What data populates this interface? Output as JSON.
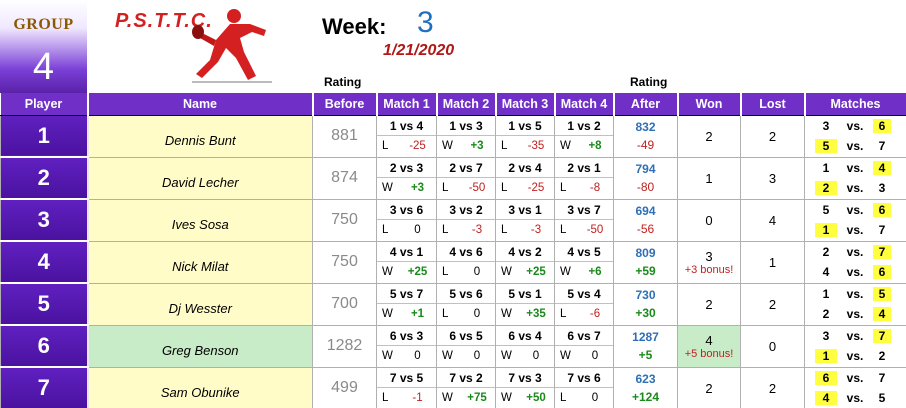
{
  "group": {
    "label": "GROUP",
    "number": "4"
  },
  "logo": {
    "text": "P.S.T.T.C."
  },
  "week": {
    "label": "Week:",
    "number": "3",
    "date": "1/21/2020"
  },
  "rating_headers": {
    "before": "Rating",
    "after": "Rating"
  },
  "columns": [
    "Player",
    "Name",
    "Before",
    "Match 1",
    "Match 2",
    "Match 3",
    "Match 4",
    "After",
    "Won",
    "Lost",
    "Matches"
  ],
  "players": [
    {
      "player": "1",
      "name": "Dennis Bunt",
      "before": "881",
      "matches": [
        {
          "vs": "1 vs 4",
          "res": "L",
          "pts": "-25"
        },
        {
          "vs": "1 vs 3",
          "res": "W",
          "pts": "+3"
        },
        {
          "vs": "1 vs 5",
          "res": "L",
          "pts": "-35"
        },
        {
          "vs": "1 vs 2",
          "res": "W",
          "pts": "+8"
        }
      ],
      "after": "832",
      "change": "-49",
      "won": "2",
      "bonus": "",
      "lost": "2",
      "sched": [
        {
          "a": "3",
          "vs": "vs.",
          "b": "6",
          "ya": false,
          "yb": true
        },
        {
          "a": "5",
          "vs": "vs.",
          "b": "7",
          "ya": true,
          "yb": false
        }
      ]
    },
    {
      "player": "2",
      "name": "David Lecher",
      "before": "874",
      "matches": [
        {
          "vs": "2 vs 3",
          "res": "W",
          "pts": "+3"
        },
        {
          "vs": "2 vs 7",
          "res": "L",
          "pts": "-50"
        },
        {
          "vs": "2 vs 4",
          "res": "L",
          "pts": "-25"
        },
        {
          "vs": "2 vs 1",
          "res": "L",
          "pts": "-8"
        }
      ],
      "after": "794",
      "change": "-80",
      "won": "1",
      "bonus": "",
      "lost": "3",
      "sched": [
        {
          "a": "1",
          "vs": "vs.",
          "b": "4",
          "ya": false,
          "yb": true
        },
        {
          "a": "2",
          "vs": "vs.",
          "b": "3",
          "ya": true,
          "yb": false
        }
      ]
    },
    {
      "player": "3",
      "name": "Ives Sosa",
      "before": "750",
      "matches": [
        {
          "vs": "3 vs 6",
          "res": "L",
          "pts": "0"
        },
        {
          "vs": "3 vs 2",
          "res": "L",
          "pts": "-3"
        },
        {
          "vs": "3 vs 1",
          "res": "L",
          "pts": "-3"
        },
        {
          "vs": "3 vs 7",
          "res": "L",
          "pts": "-50"
        }
      ],
      "after": "694",
      "change": "-56",
      "won": "0",
      "bonus": "",
      "lost": "4",
      "sched": [
        {
          "a": "5",
          "vs": "vs.",
          "b": "6",
          "ya": false,
          "yb": true
        },
        {
          "a": "1",
          "vs": "vs.",
          "b": "7",
          "ya": true,
          "yb": false
        }
      ]
    },
    {
      "player": "4",
      "name": "Nick Milat",
      "before": "750",
      "matches": [
        {
          "vs": "4 vs 1",
          "res": "W",
          "pts": "+25"
        },
        {
          "vs": "4 vs 6",
          "res": "L",
          "pts": "0"
        },
        {
          "vs": "4 vs 2",
          "res": "W",
          "pts": "+25"
        },
        {
          "vs": "4 vs 5",
          "res": "W",
          "pts": "+6"
        }
      ],
      "after": "809",
      "change": "+59",
      "won": "3",
      "bonus": "+3 bonus!",
      "lost": "1",
      "sched": [
        {
          "a": "2",
          "vs": "vs.",
          "b": "7",
          "ya": false,
          "yb": true
        },
        {
          "a": "4",
          "vs": "vs.",
          "b": "6",
          "ya": false,
          "yb": true
        }
      ]
    },
    {
      "player": "5",
      "name": "Dj Wesster",
      "before": "700",
      "matches": [
        {
          "vs": "5 vs 7",
          "res": "W",
          "pts": "+1"
        },
        {
          "vs": "5 vs 6",
          "res": "L",
          "pts": "0"
        },
        {
          "vs": "5 vs 1",
          "res": "W",
          "pts": "+35"
        },
        {
          "vs": "5 vs 4",
          "res": "L",
          "pts": "-6"
        }
      ],
      "after": "730",
      "change": "+30",
      "won": "2",
      "bonus": "",
      "lost": "2",
      "sched": [
        {
          "a": "1",
          "vs": "vs.",
          "b": "5",
          "ya": false,
          "yb": true
        },
        {
          "a": "2",
          "vs": "vs.",
          "b": "4",
          "ya": false,
          "yb": true
        }
      ]
    },
    {
      "player": "6",
      "name": "Greg Benson",
      "before": "1282",
      "matches": [
        {
          "vs": "6 vs 3",
          "res": "W",
          "pts": "0"
        },
        {
          "vs": "6 vs 5",
          "res": "W",
          "pts": "0"
        },
        {
          "vs": "6 vs 4",
          "res": "W",
          "pts": "0"
        },
        {
          "vs": "6 vs 7",
          "res": "W",
          "pts": "0"
        }
      ],
      "after": "1287",
      "change": "+5",
      "won": "4",
      "bonus": "+5 bonus!",
      "lost": "0",
      "highlight": true,
      "sched": [
        {
          "a": "3",
          "vs": "vs.",
          "b": "7",
          "ya": false,
          "yb": true
        },
        {
          "a": "1",
          "vs": "vs.",
          "b": "2",
          "ya": true,
          "yb": false
        }
      ]
    },
    {
      "player": "7",
      "name": "Sam Obunike",
      "before": "499",
      "matches": [
        {
          "vs": "7 vs 5",
          "res": "L",
          "pts": "-1"
        },
        {
          "vs": "7 vs 2",
          "res": "W",
          "pts": "+75"
        },
        {
          "vs": "7 vs 3",
          "res": "W",
          "pts": "+50"
        },
        {
          "vs": "7 vs 6",
          "res": "L",
          "pts": "0"
        }
      ],
      "after": "623",
      "change": "+124",
      "won": "2",
      "bonus": "",
      "lost": "2",
      "sched": [
        {
          "a": "6",
          "vs": "vs.",
          "b": "7",
          "ya": true,
          "yb": false
        },
        {
          "a": "4",
          "vs": "vs.",
          "b": "5",
          "ya": true,
          "yb": false
        }
      ]
    }
  ],
  "colors": {
    "purple": "#7030c8",
    "name_bg": "#fffcc8",
    "highlight": "#c8ecc8",
    "after_blue": "#2e6fb5",
    "gain": "#1a8a1a",
    "loss": "#c02020",
    "yellow": "#ffff40"
  },
  "icons": {
    "logo": "table-tennis-player-icon"
  }
}
